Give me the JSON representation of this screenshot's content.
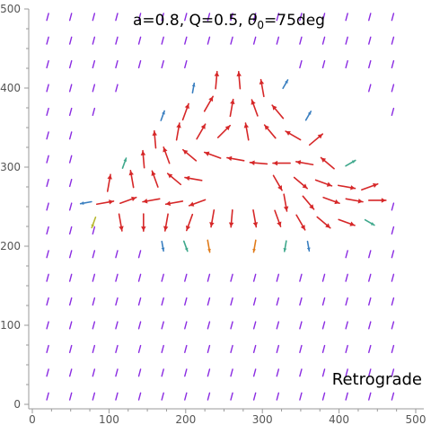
{
  "chart_data": {
    "type": "vector-field",
    "title": {
      "prefix": "a=0.8, Q=0.5, ",
      "theta_symbol": "θ",
      "theta_subscript": "0",
      "suffix": "=75deg"
    },
    "legend_label": "Retrograde",
    "xlim": [
      0,
      500
    ],
    "ylim": [
      0,
      500
    ],
    "x_ticks": [
      0,
      100,
      200,
      300,
      400,
      500
    ],
    "y_ticks": [
      0,
      100,
      200,
      300,
      400,
      500
    ],
    "tick_labels_x": [
      "0",
      "100",
      "200",
      "300",
      "400",
      "500"
    ],
    "tick_labels_y": [
      "0",
      "100",
      "200",
      "300",
      "400",
      "500"
    ],
    "grid": false,
    "colors": {
      "strong": "#d62728",
      "orange": "#e07b1a",
      "olive": "#b8b830",
      "teal": "#3fa88c",
      "blue": "#3a7fc0",
      "weak": "#8a2be2"
    },
    "vectors": [
      {
        "x": 210,
        "y": 400,
        "angle": 80,
        "mag": 0.25,
        "color": "blue"
      },
      {
        "x": 240,
        "y": 410,
        "angle": 85,
        "mag": 1,
        "color": "strong"
      },
      {
        "x": 270,
        "y": 410,
        "angle": 95,
        "mag": 1,
        "color": "strong"
      },
      {
        "x": 300,
        "y": 400,
        "angle": 100,
        "mag": 1,
        "color": "strong"
      },
      {
        "x": 330,
        "y": 405,
        "angle": 60,
        "mag": 0.25,
        "color": "blue"
      },
      {
        "x": 170,
        "y": 365,
        "angle": 70,
        "mag": 0.3,
        "color": "blue"
      },
      {
        "x": 200,
        "y": 370,
        "angle": 70,
        "mag": 1,
        "color": "strong"
      },
      {
        "x": 230,
        "y": 380,
        "angle": 60,
        "mag": 1,
        "color": "strong"
      },
      {
        "x": 260,
        "y": 375,
        "angle": 80,
        "mag": 1,
        "color": "strong"
      },
      {
        "x": 290,
        "y": 375,
        "angle": 110,
        "mag": 1,
        "color": "strong"
      },
      {
        "x": 320,
        "y": 370,
        "angle": 130,
        "mag": 1,
        "color": "strong"
      },
      {
        "x": 360,
        "y": 365,
        "angle": 60,
        "mag": 0.3,
        "color": "blue"
      },
      {
        "x": 160,
        "y": 335,
        "angle": 95,
        "mag": 1,
        "color": "strong"
      },
      {
        "x": 190,
        "y": 345,
        "angle": 80,
        "mag": 1,
        "color": "strong"
      },
      {
        "x": 220,
        "y": 345,
        "angle": 60,
        "mag": 1,
        "color": "strong"
      },
      {
        "x": 250,
        "y": 345,
        "angle": 45,
        "mag": 1,
        "color": "strong"
      },
      {
        "x": 280,
        "y": 345,
        "angle": 100,
        "mag": 1,
        "color": "strong"
      },
      {
        "x": 310,
        "y": 345,
        "angle": 130,
        "mag": 1,
        "color": "strong"
      },
      {
        "x": 340,
        "y": 340,
        "angle": 150,
        "mag": 1,
        "color": "strong"
      },
      {
        "x": 370,
        "y": 335,
        "angle": 40,
        "mag": 1,
        "color": "strong"
      },
      {
        "x": 120,
        "y": 305,
        "angle": 70,
        "mag": 0.35,
        "color": "teal"
      },
      {
        "x": 145,
        "y": 310,
        "angle": 95,
        "mag": 1,
        "color": "strong"
      },
      {
        "x": 175,
        "y": 315,
        "angle": 110,
        "mag": 1,
        "color": "strong"
      },
      {
        "x": 205,
        "y": 315,
        "angle": 140,
        "mag": 1,
        "color": "strong"
      },
      {
        "x": 235,
        "y": 315,
        "angle": 160,
        "mag": 1,
        "color": "strong"
      },
      {
        "x": 265,
        "y": 310,
        "angle": 170,
        "mag": 1,
        "color": "strong"
      },
      {
        "x": 295,
        "y": 305,
        "angle": 175,
        "mag": 1,
        "color": "strong"
      },
      {
        "x": 325,
        "y": 305,
        "angle": 180,
        "mag": 1,
        "color": "strong"
      },
      {
        "x": 355,
        "y": 305,
        "angle": 170,
        "mag": 1,
        "color": "strong"
      },
      {
        "x": 385,
        "y": 305,
        "angle": 140,
        "mag": 1,
        "color": "strong"
      },
      {
        "x": 415,
        "y": 305,
        "angle": 30,
        "mag": 0.4,
        "color": "teal"
      },
      {
        "x": 100,
        "y": 280,
        "angle": 80,
        "mag": 1,
        "color": "strong"
      },
      {
        "x": 130,
        "y": 285,
        "angle": 100,
        "mag": 1,
        "color": "strong"
      },
      {
        "x": 160,
        "y": 285,
        "angle": 110,
        "mag": 1,
        "color": "strong"
      },
      {
        "x": 185,
        "y": 285,
        "angle": 140,
        "mag": 1,
        "color": "strong"
      },
      {
        "x": 210,
        "y": 285,
        "angle": 170,
        "mag": 1,
        "color": "strong"
      },
      {
        "x": 320,
        "y": 280,
        "angle": -60,
        "mag": 1,
        "color": "strong"
      },
      {
        "x": 350,
        "y": 280,
        "angle": -40,
        "mag": 1,
        "color": "strong"
      },
      {
        "x": 380,
        "y": 280,
        "angle": -20,
        "mag": 1,
        "color": "strong"
      },
      {
        "x": 410,
        "y": 275,
        "angle": -10,
        "mag": 1,
        "color": "strong"
      },
      {
        "x": 440,
        "y": 275,
        "angle": 20,
        "mag": 1,
        "color": "strong"
      },
      {
        "x": 70,
        "y": 255,
        "angle": 190,
        "mag": 0.4,
        "color": "blue"
      },
      {
        "x": 95,
        "y": 255,
        "angle": 10,
        "mag": 1,
        "color": "strong"
      },
      {
        "x": 125,
        "y": 258,
        "angle": 20,
        "mag": 1,
        "color": "strong"
      },
      {
        "x": 155,
        "y": 258,
        "angle": -170,
        "mag": 1,
        "color": "strong"
      },
      {
        "x": 185,
        "y": 255,
        "angle": -170,
        "mag": 1,
        "color": "strong"
      },
      {
        "x": 215,
        "y": 255,
        "angle": -160,
        "mag": 1,
        "color": "strong"
      },
      {
        "x": 330,
        "y": 255,
        "angle": -80,
        "mag": 1,
        "color": "strong"
      },
      {
        "x": 360,
        "y": 255,
        "angle": -50,
        "mag": 1,
        "color": "strong"
      },
      {
        "x": 390,
        "y": 258,
        "angle": -20,
        "mag": 1,
        "color": "strong"
      },
      {
        "x": 420,
        "y": 258,
        "angle": -10,
        "mag": 1,
        "color": "strong"
      },
      {
        "x": 450,
        "y": 258,
        "angle": 0,
        "mag": 1,
        "color": "strong"
      },
      {
        "x": 80,
        "y": 230,
        "angle": -110,
        "mag": 0.4,
        "color": "olive"
      },
      {
        "x": 115,
        "y": 230,
        "angle": -80,
        "mag": 1,
        "color": "strong"
      },
      {
        "x": 145,
        "y": 230,
        "angle": -90,
        "mag": 1,
        "color": "strong"
      },
      {
        "x": 175,
        "y": 230,
        "angle": -100,
        "mag": 1,
        "color": "strong"
      },
      {
        "x": 205,
        "y": 230,
        "angle": -110,
        "mag": 1,
        "color": "strong"
      },
      {
        "x": 235,
        "y": 235,
        "angle": -100,
        "mag": 1,
        "color": "strong"
      },
      {
        "x": 260,
        "y": 235,
        "angle": -95,
        "mag": 1,
        "color": "strong"
      },
      {
        "x": 290,
        "y": 235,
        "angle": -80,
        "mag": 1,
        "color": "strong"
      },
      {
        "x": 320,
        "y": 235,
        "angle": -70,
        "mag": 1,
        "color": "strong"
      },
      {
        "x": 350,
        "y": 230,
        "angle": -60,
        "mag": 1,
        "color": "strong"
      },
      {
        "x": 380,
        "y": 230,
        "angle": -40,
        "mag": 1,
        "color": "strong"
      },
      {
        "x": 410,
        "y": 230,
        "angle": -20,
        "mag": 1,
        "color": "strong"
      },
      {
        "x": 440,
        "y": 230,
        "angle": -30,
        "mag": 0.35,
        "color": "teal"
      },
      {
        "x": 170,
        "y": 200,
        "angle": -80,
        "mag": 0.25,
        "color": "blue"
      },
      {
        "x": 200,
        "y": 200,
        "angle": -70,
        "mag": 0.35,
        "color": "teal"
      },
      {
        "x": 230,
        "y": 200,
        "angle": -80,
        "mag": 0.5,
        "color": "orange"
      },
      {
        "x": 290,
        "y": 200,
        "angle": -100,
        "mag": 0.5,
        "color": "orange"
      },
      {
        "x": 330,
        "y": 200,
        "angle": -100,
        "mag": 0.35,
        "color": "teal"
      },
      {
        "x": 360,
        "y": 200,
        "angle": -80,
        "mag": 0.25,
        "color": "blue"
      }
    ]
  }
}
